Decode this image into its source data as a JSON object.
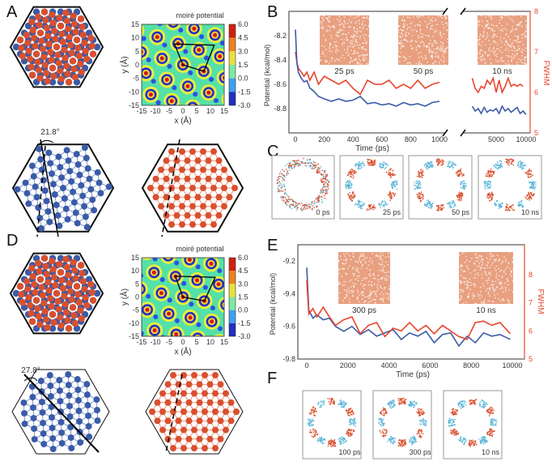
{
  "panel_labels": [
    "A",
    "B",
    "C",
    "D",
    "E",
    "F"
  ],
  "panel_a": {
    "colorbar_title": "moiré potential",
    "colorbar_ticks": [
      "6.0",
      "4.5",
      "3.0",
      "1.5",
      "0.0",
      "-1.5",
      "-3.0"
    ],
    "x_ticks": [
      "-15",
      "-10",
      "-5",
      "0",
      "5",
      "10",
      "15"
    ],
    "y_ticks": [
      "15",
      "10",
      "5",
      "0",
      "-5",
      "-10",
      "-15"
    ],
    "xlabel": "x (Å)",
    "ylabel": "y (Å)",
    "angle": "21.8°"
  },
  "panel_d": {
    "colorbar_title": "moiré potential",
    "colorbar_ticks": [
      "6.0",
      "4.5",
      "3.0",
      "1.5",
      "0.0",
      "-1.5",
      "-3.0"
    ],
    "x_ticks": [
      "-15",
      "-10",
      "-5",
      "0",
      "5",
      "10",
      "15"
    ],
    "y_ticks": [
      "15",
      "10",
      "5",
      "0",
      "-5",
      "-10",
      "-15"
    ],
    "xlabel": "x (Å)",
    "ylabel": "y (Å)",
    "angle": "27.8°"
  },
  "colors": {
    "potential": "#3a5ba8",
    "fwhm": "#e8452c",
    "ring_red": "#d9502e",
    "ring_blue": "#5fb7d8"
  },
  "panel_c": {
    "labels": [
      "0 ps",
      "25 ps",
      "50 ps",
      "10 ns"
    ]
  },
  "panel_f": {
    "labels": [
      "100 ps",
      "300 ps",
      "10 ns"
    ]
  },
  "chart_data": [
    {
      "type": "line",
      "panel": "B",
      "xlabel": "Time (ps)",
      "ylabel": "Potential (kcal/mol)",
      "y2label": "FWHM",
      "axis_break": true,
      "x_ticks_left": [
        "0",
        "200",
        "400",
        "600",
        "800",
        "1000"
      ],
      "x_ticks_right": [
        "5000",
        "10000"
      ],
      "y_ticks": [
        "-8.2",
        "-8.4",
        "-8.6",
        "-8.8"
      ],
      "y2_ticks": [
        "8",
        "7",
        "6",
        "5"
      ],
      "ylim": [
        -9.0,
        -8.0
      ],
      "y2lim": [
        5,
        8
      ],
      "inset_labels": [
        "25 ps",
        "50 ps",
        "10 ns"
      ],
      "series": [
        {
          "axis": "left",
          "x": [
            0,
            10,
            20,
            40,
            60,
            80,
            100,
            130,
            160,
            200,
            250,
            300,
            350,
            400,
            450,
            500,
            550,
            600,
            650,
            700,
            750,
            800,
            850,
            900,
            950,
            1000
          ],
          "y": [
            -8.15,
            -8.42,
            -8.5,
            -8.55,
            -8.58,
            -8.57,
            -8.63,
            -8.66,
            -8.7,
            -8.72,
            -8.74,
            -8.72,
            -8.74,
            -8.73,
            -8.7,
            -8.76,
            -8.75,
            -8.77,
            -8.76,
            -8.78,
            -8.75,
            -8.77,
            -8.76,
            -8.78,
            -8.75,
            -8.74
          ]
        },
        {
          "axis": "right",
          "x": [
            0,
            10,
            20,
            40,
            60,
            80,
            100,
            130,
            160,
            200,
            250,
            300,
            350,
            400,
            450,
            500,
            550,
            600,
            650,
            700,
            750,
            800,
            850,
            900,
            950,
            1000
          ],
          "y": [
            7.0,
            6.75,
            6.6,
            6.5,
            6.4,
            6.5,
            6.3,
            6.5,
            6.2,
            6.4,
            6.3,
            6.2,
            6.3,
            6.1,
            5.95,
            6.3,
            6.2,
            6.2,
            6.3,
            6.1,
            6.2,
            6.1,
            6.3,
            6.1,
            6.2,
            6.25
          ]
        },
        {
          "axis": "left",
          "x": [
            1000,
            1500,
            2000,
            2500,
            3000,
            3500,
            4000,
            4500,
            5000,
            5500,
            6000,
            6500,
            7000,
            7500,
            8000,
            8500,
            9000,
            9500,
            10000
          ],
          "y": [
            -8.78,
            -8.82,
            -8.8,
            -8.84,
            -8.79,
            -8.83,
            -8.81,
            -8.82,
            -8.8,
            -8.84,
            -8.78,
            -8.82,
            -8.8,
            -8.83,
            -8.81,
            -8.79,
            -8.84,
            -8.82,
            -8.85
          ]
        },
        {
          "axis": "right",
          "x": [
            1000,
            1500,
            2000,
            2500,
            3000,
            3500,
            4000,
            4500,
            5000,
            5500,
            6000,
            6500,
            7000,
            7500,
            8000,
            8500,
            9000,
            9500
          ],
          "y": [
            6.35,
            6.1,
            6.0,
            6.15,
            6.1,
            6.3,
            6.2,
            6.35,
            6.0,
            6.3,
            6.0,
            6.15,
            6.35,
            6.15,
            6.2,
            6.15,
            6.2,
            6.15
          ]
        }
      ]
    },
    {
      "type": "line",
      "panel": "E",
      "xlabel": "Time (ps)",
      "ylabel": "Potential (kcal/mol)",
      "y2label": "FWHM",
      "x_ticks": [
        "0",
        "2000",
        "4000",
        "6000",
        "8000",
        "10000"
      ],
      "y_ticks": [
        "-9.2",
        "-9.4",
        "-9.6",
        "-9.8"
      ],
      "y2_ticks": [
        "8",
        "7",
        "6",
        "5"
      ],
      "ylim": [
        -9.8,
        -9.1
      ],
      "y2lim": [
        5,
        9.07
      ],
      "inset_labels": [
        "300 ps",
        "10 ns"
      ],
      "series": [
        {
          "axis": "left",
          "x": [
            0,
            100,
            300,
            500,
            800,
            1100,
            1400,
            1800,
            2200,
            2600,
            3000,
            3400,
            3800,
            4200,
            4600,
            5000,
            5400,
            5800,
            6200,
            6600,
            7000,
            7400,
            7800,
            8200,
            8600,
            9000,
            9400,
            9900
          ],
          "y": [
            -9.24,
            -9.5,
            -9.55,
            -9.53,
            -9.56,
            -9.55,
            -9.6,
            -9.63,
            -9.6,
            -9.65,
            -9.62,
            -9.66,
            -9.64,
            -9.62,
            -9.68,
            -9.64,
            -9.66,
            -9.63,
            -9.7,
            -9.65,
            -9.64,
            -9.72,
            -9.66,
            -9.7,
            -9.64,
            -9.66,
            -9.65,
            -9.68
          ]
        },
        {
          "axis": "right",
          "x": [
            0,
            100,
            300,
            500,
            800,
            1100,
            1400,
            1800,
            2200,
            2600,
            3000,
            3400,
            3800,
            4200,
            4600,
            5000,
            5400,
            5800,
            6200,
            6600,
            7000,
            7400,
            7800,
            8200,
            8600,
            9000,
            9400,
            9900
          ],
          "y": [
            7.8,
            6.6,
            6.8,
            6.5,
            6.85,
            6.5,
            6.2,
            6.4,
            6.5,
            5.9,
            6.2,
            6.3,
            5.8,
            6.1,
            6.0,
            6.3,
            6.0,
            6.2,
            5.9,
            6.2,
            6.0,
            5.8,
            5.7,
            6.3,
            6.35,
            6.2,
            6.3,
            5.9
          ]
        }
      ]
    }
  ]
}
